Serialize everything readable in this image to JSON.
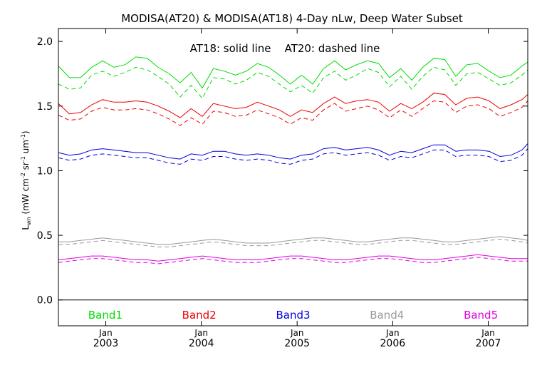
{
  "chart_data": {
    "type": "line",
    "title": "MODISA(AT20) & MODISA(AT18) 4-Day nLw, Deep Water Subset",
    "annotation": "AT18: solid line    AT20: dashed line",
    "ylabel": {
      "main": "L",
      "sub": "wn",
      "units_open": " (mW cm",
      "exp1": "-2",
      "sr": " sr",
      "exp2": "-1",
      "um": " um",
      "exp3": "-1",
      "units_close": ")"
    },
    "ylim": [
      -0.2,
      2.1
    ],
    "yticks": [
      0.0,
      0.5,
      1.0,
      1.5,
      2.0
    ],
    "ytick_labels": [
      "0.0",
      "0.5",
      "1.0",
      "1.5",
      "2.0"
    ],
    "zero_line": true,
    "xlim": [
      "2002-07-04",
      "2007-06-01"
    ],
    "xticks": [
      {
        "date": "2003-01-01",
        "month": "Jan",
        "year": "2003"
      },
      {
        "date": "2004-01-01",
        "month": "Jan",
        "year": "2004"
      },
      {
        "date": "2005-01-01",
        "month": "Jan",
        "year": "2005"
      },
      {
        "date": "2006-01-01",
        "month": "Jan",
        "year": "2006"
      },
      {
        "date": "2007-01-01",
        "month": "Jan",
        "year": "2007"
      }
    ],
    "legend": [
      {
        "label": "Band1",
        "color": "#00dd00"
      },
      {
        "label": "Band2",
        "color": "#ee0000"
      },
      {
        "label": "Band3",
        "color": "#0000dd"
      },
      {
        "label": "Band4",
        "color": "#999999"
      },
      {
        "label": "Band5",
        "color": "#dd00dd"
      }
    ],
    "legend_placement": "bottom",
    "line_styles": {
      "AT18": "solid",
      "AT20": "dashed"
    },
    "x": [
      "2002-07-04",
      "2002-08-15",
      "2002-09-27",
      "2002-11-08",
      "2002-12-20",
      "2003-02-01",
      "2003-03-15",
      "2003-04-26",
      "2003-06-08",
      "2003-07-20",
      "2003-08-31",
      "2003-10-12",
      "2003-11-23",
      "2004-01-05",
      "2004-02-16",
      "2004-03-29",
      "2004-05-10",
      "2004-06-21",
      "2004-08-02",
      "2004-09-14",
      "2004-10-25",
      "2004-12-06",
      "2005-01-18",
      "2005-03-01",
      "2005-04-12",
      "2005-05-24",
      "2005-07-05",
      "2005-08-16",
      "2005-09-27",
      "2005-11-08",
      "2005-12-20",
      "2006-02-01",
      "2006-03-15",
      "2006-04-26",
      "2006-06-07",
      "2006-07-19",
      "2006-08-30",
      "2006-10-11",
      "2006-11-22",
      "2007-01-04",
      "2007-02-15",
      "2007-03-29",
      "2007-05-10",
      "2007-06-01"
    ],
    "series": [
      {
        "band": "Band1",
        "style": "solid",
        "color": "#00dd00",
        "values": [
          1.81,
          1.72,
          1.72,
          1.8,
          1.85,
          1.8,
          1.82,
          1.88,
          1.87,
          1.8,
          1.75,
          1.68,
          1.76,
          1.64,
          1.79,
          1.77,
          1.74,
          1.77,
          1.83,
          1.8,
          1.74,
          1.67,
          1.74,
          1.67,
          1.79,
          1.85,
          1.78,
          1.82,
          1.85,
          1.83,
          1.72,
          1.79,
          1.7,
          1.8,
          1.87,
          1.86,
          1.73,
          1.82,
          1.83,
          1.77,
          1.72,
          1.74,
          1.81,
          1.84
        ]
      },
      {
        "band": "Band1",
        "style": "dashed",
        "color": "#00dd00",
        "values": [
          1.67,
          1.63,
          1.64,
          1.74,
          1.77,
          1.73,
          1.76,
          1.8,
          1.78,
          1.73,
          1.67,
          1.57,
          1.66,
          1.56,
          1.72,
          1.71,
          1.67,
          1.7,
          1.76,
          1.73,
          1.67,
          1.61,
          1.66,
          1.6,
          1.72,
          1.77,
          1.7,
          1.74,
          1.79,
          1.76,
          1.65,
          1.73,
          1.63,
          1.73,
          1.8,
          1.78,
          1.66,
          1.75,
          1.76,
          1.71,
          1.66,
          1.68,
          1.74,
          1.78
        ]
      },
      {
        "band": "Band2",
        "style": "solid",
        "color": "#ee0000",
        "values": [
          1.52,
          1.44,
          1.45,
          1.51,
          1.55,
          1.53,
          1.53,
          1.54,
          1.53,
          1.5,
          1.46,
          1.41,
          1.48,
          1.42,
          1.52,
          1.5,
          1.48,
          1.49,
          1.53,
          1.5,
          1.47,
          1.42,
          1.47,
          1.45,
          1.52,
          1.57,
          1.52,
          1.54,
          1.55,
          1.53,
          1.46,
          1.52,
          1.48,
          1.53,
          1.6,
          1.59,
          1.51,
          1.56,
          1.57,
          1.54,
          1.48,
          1.51,
          1.55,
          1.59
        ]
      },
      {
        "band": "Band2",
        "style": "dashed",
        "color": "#ee0000",
        "values": [
          1.43,
          1.39,
          1.4,
          1.46,
          1.49,
          1.47,
          1.47,
          1.48,
          1.47,
          1.44,
          1.4,
          1.35,
          1.41,
          1.36,
          1.46,
          1.45,
          1.42,
          1.43,
          1.47,
          1.44,
          1.41,
          1.36,
          1.41,
          1.39,
          1.47,
          1.52,
          1.46,
          1.48,
          1.5,
          1.47,
          1.41,
          1.47,
          1.42,
          1.48,
          1.54,
          1.53,
          1.45,
          1.5,
          1.51,
          1.48,
          1.42,
          1.45,
          1.49,
          1.54
        ]
      },
      {
        "band": "Band3",
        "style": "solid",
        "color": "#0000dd",
        "values": [
          1.14,
          1.12,
          1.13,
          1.16,
          1.17,
          1.16,
          1.15,
          1.14,
          1.14,
          1.12,
          1.1,
          1.09,
          1.13,
          1.12,
          1.15,
          1.15,
          1.13,
          1.12,
          1.13,
          1.12,
          1.1,
          1.09,
          1.12,
          1.13,
          1.17,
          1.18,
          1.16,
          1.17,
          1.18,
          1.16,
          1.12,
          1.15,
          1.14,
          1.17,
          1.2,
          1.2,
          1.15,
          1.16,
          1.16,
          1.15,
          1.11,
          1.12,
          1.16,
          1.21
        ]
      },
      {
        "band": "Band3",
        "style": "dashed",
        "color": "#0000dd",
        "values": [
          1.1,
          1.08,
          1.09,
          1.12,
          1.13,
          1.12,
          1.11,
          1.1,
          1.1,
          1.08,
          1.06,
          1.05,
          1.09,
          1.08,
          1.11,
          1.11,
          1.09,
          1.08,
          1.09,
          1.08,
          1.06,
          1.05,
          1.08,
          1.09,
          1.13,
          1.14,
          1.12,
          1.13,
          1.14,
          1.12,
          1.08,
          1.11,
          1.1,
          1.13,
          1.16,
          1.16,
          1.11,
          1.12,
          1.12,
          1.11,
          1.07,
          1.08,
          1.12,
          1.17
        ]
      },
      {
        "band": "Band4",
        "style": "solid",
        "color": "#999999",
        "values": [
          0.45,
          0.45,
          0.46,
          0.47,
          0.48,
          0.47,
          0.46,
          0.45,
          0.44,
          0.43,
          0.43,
          0.44,
          0.45,
          0.46,
          0.47,
          0.46,
          0.45,
          0.44,
          0.44,
          0.44,
          0.45,
          0.46,
          0.47,
          0.48,
          0.48,
          0.47,
          0.46,
          0.45,
          0.45,
          0.46,
          0.47,
          0.48,
          0.48,
          0.47,
          0.46,
          0.45,
          0.45,
          0.46,
          0.47,
          0.48,
          0.49,
          0.48,
          0.47,
          0.46
        ]
      },
      {
        "band": "Band4",
        "style": "dashed",
        "color": "#999999",
        "values": [
          0.43,
          0.43,
          0.44,
          0.45,
          0.46,
          0.45,
          0.44,
          0.43,
          0.42,
          0.41,
          0.41,
          0.42,
          0.43,
          0.44,
          0.45,
          0.44,
          0.43,
          0.42,
          0.42,
          0.42,
          0.43,
          0.44,
          0.45,
          0.46,
          0.46,
          0.45,
          0.44,
          0.43,
          0.43,
          0.44,
          0.45,
          0.46,
          0.46,
          0.45,
          0.44,
          0.43,
          0.43,
          0.44,
          0.45,
          0.46,
          0.47,
          0.46,
          0.45,
          0.44
        ]
      },
      {
        "band": "Band5",
        "style": "solid",
        "color": "#dd00dd",
        "values": [
          0.31,
          0.32,
          0.33,
          0.34,
          0.34,
          0.33,
          0.32,
          0.31,
          0.31,
          0.3,
          0.31,
          0.32,
          0.33,
          0.34,
          0.33,
          0.32,
          0.31,
          0.31,
          0.31,
          0.32,
          0.33,
          0.34,
          0.34,
          0.33,
          0.32,
          0.31,
          0.31,
          0.32,
          0.33,
          0.34,
          0.34,
          0.33,
          0.32,
          0.31,
          0.31,
          0.32,
          0.33,
          0.34,
          0.35,
          0.34,
          0.33,
          0.32,
          0.32,
          0.32
        ]
      },
      {
        "band": "Band5",
        "style": "dashed",
        "color": "#dd00dd",
        "values": [
          0.29,
          0.3,
          0.31,
          0.32,
          0.32,
          0.31,
          0.3,
          0.29,
          0.29,
          0.28,
          0.29,
          0.3,
          0.31,
          0.32,
          0.31,
          0.3,
          0.29,
          0.29,
          0.29,
          0.3,
          0.31,
          0.32,
          0.32,
          0.31,
          0.3,
          0.29,
          0.29,
          0.3,
          0.31,
          0.32,
          0.32,
          0.31,
          0.3,
          0.29,
          0.29,
          0.3,
          0.31,
          0.32,
          0.33,
          0.32,
          0.31,
          0.3,
          0.3,
          0.3
        ]
      }
    ]
  }
}
